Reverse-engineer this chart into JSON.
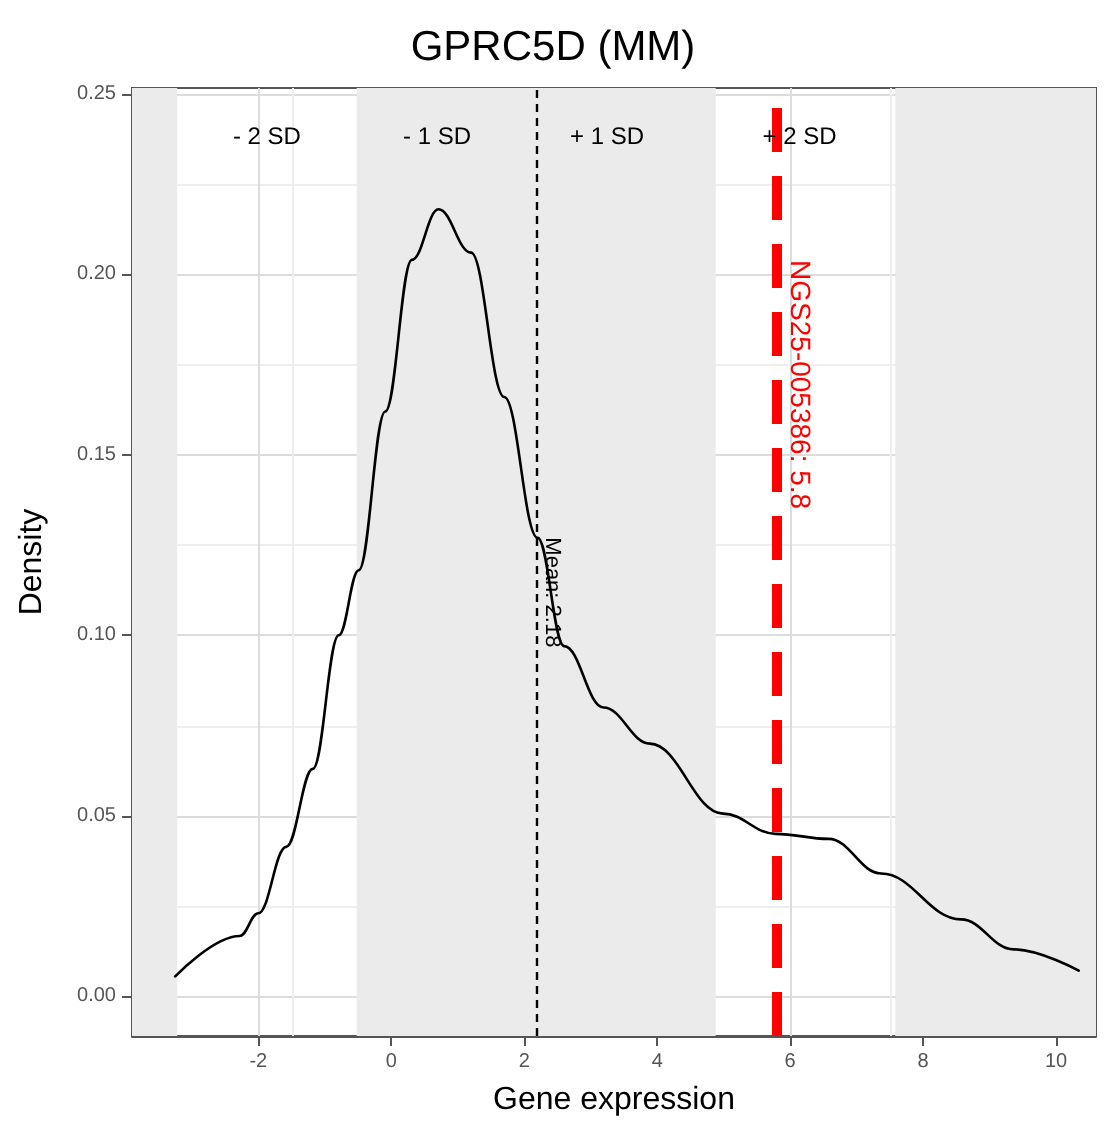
{
  "chart_data": {
    "type": "line",
    "title": "GPRC5D (MM)",
    "xlabel": "Gene expression",
    "ylabel": "Density",
    "series": [
      {
        "color": "#000000",
        "x": [
          -3.25,
          -2.28,
          -2.0,
          -1.58,
          -1.18,
          -0.79,
          -0.49,
          -0.09,
          0.31,
          0.71,
          1.2,
          1.7,
          2.2,
          2.6,
          3.19,
          3.89,
          4.99,
          5.78,
          6.58,
          7.37,
          8.57,
          9.36,
          10.34
        ],
        "values": [
          0.0055,
          0.0167,
          0.023,
          0.0414,
          0.063,
          0.1,
          0.118,
          0.162,
          0.204,
          0.218,
          0.206,
          0.166,
          0.127,
          0.097,
          0.08,
          0.07,
          0.0506,
          0.045,
          0.0436,
          0.034,
          0.0213,
          0.013,
          0.0071
        ]
      }
    ],
    "xlim": [
      -3.9,
      10.6
    ],
    "xticks": [
      -2,
      0,
      2,
      4,
      6,
      8,
      10
    ],
    "ylim": [
      -0.011,
      0.2516
    ],
    "yticks": [
      {
        "value": 0,
        "label": "0.00"
      },
      0.05,
      {
        "value": 0.1,
        "label": "0.10"
      },
      0.15,
      {
        "value": 0.2,
        "label": "0.20"
      },
      0.25
    ],
    "grid": true,
    "marker": "none",
    "line_style": "solid",
    "bands": [
      {
        "axis": "x",
        "from": -3.9,
        "to": -3.22,
        "color": "#ebebeb"
      },
      {
        "axis": "x",
        "from": -0.52,
        "to": 4.88,
        "color": "#ebebeb"
      },
      {
        "axis": "x",
        "from": 7.58,
        "to": 10.6,
        "color": "#ebebeb"
      }
    ],
    "ref_lines": [
      {
        "axis": "x",
        "value": 2.18,
        "label": "Mean: 2.18",
        "color": "#000000",
        "line_style": "dashed"
      },
      {
        "axis": "x",
        "value": 5.8,
        "label": "NGS25-005386: 5.8",
        "color": "#ff0000",
        "line_style": "dashed"
      }
    ],
    "annotations": [
      "- 2 SD",
      "- 1 SD",
      "+ 1 SD",
      "+ 2 SD"
    ]
  }
}
